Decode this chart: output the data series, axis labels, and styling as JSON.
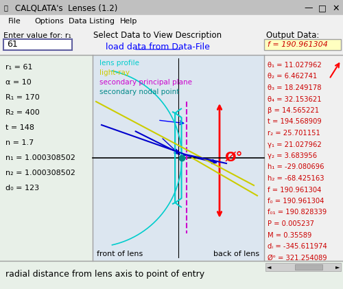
{
  "title": "CALQLATA's  Lenses (1.2)",
  "bg_color": "#f0f0f0",
  "canvas_bg": "#dce6f0",
  "left_panel_bg": "#e8f0e8",
  "menu_items": [
    "File",
    "Options",
    "Data Listing",
    "Help"
  ],
  "enter_label": "Enter value for: r₁",
  "input_value": "61",
  "select_label": "Select Data to View Description",
  "load_link": "load data from Data-File",
  "output_label": "Output Data:",
  "output_value": "f = 190.961304",
  "left_data": [
    "r₁ = 61",
    "α = 10",
    "R₁ = 170",
    "R₂ = 400",
    "t = 148",
    "n = 1.7",
    "n₁ = 1.000308502",
    "n₂ = 1.000308502",
    "d₀ = 123"
  ],
  "right_data": [
    "θ₁ = 11.027962",
    "θ₂ = 6.462741",
    "θ₃ = 18.249178",
    "θ₄ = 32.153621",
    "β = 14.565221",
    "t = 194.568909",
    "r₂ = 25.701151",
    "γ₁ = 21.027962",
    "γ₂ = 3.683956",
    "h₁ = -29.080696",
    "h₂ = -68.425163",
    "f = 190.961304",
    "f₀ = 190.961304",
    "f₀₁ = 190.828339",
    "P = 0.005237",
    "M = 0.35589",
    "dᵢ = -345.611974",
    "Øᵒ = 321.254089"
  ],
  "legend_items": [
    {
      "label": "lens profile",
      "color": "#00cccc"
    },
    {
      "label": "light-ray",
      "color": "#cccc00"
    },
    {
      "label": "secondary principal plane",
      "color": "#cc00cc"
    },
    {
      "label": "secondary nodal point",
      "color": "#008888"
    }
  ],
  "status_bar": "radial distance from lens axis to point of entry",
  "front_label": "front of lens",
  "back_label": "back of lens"
}
